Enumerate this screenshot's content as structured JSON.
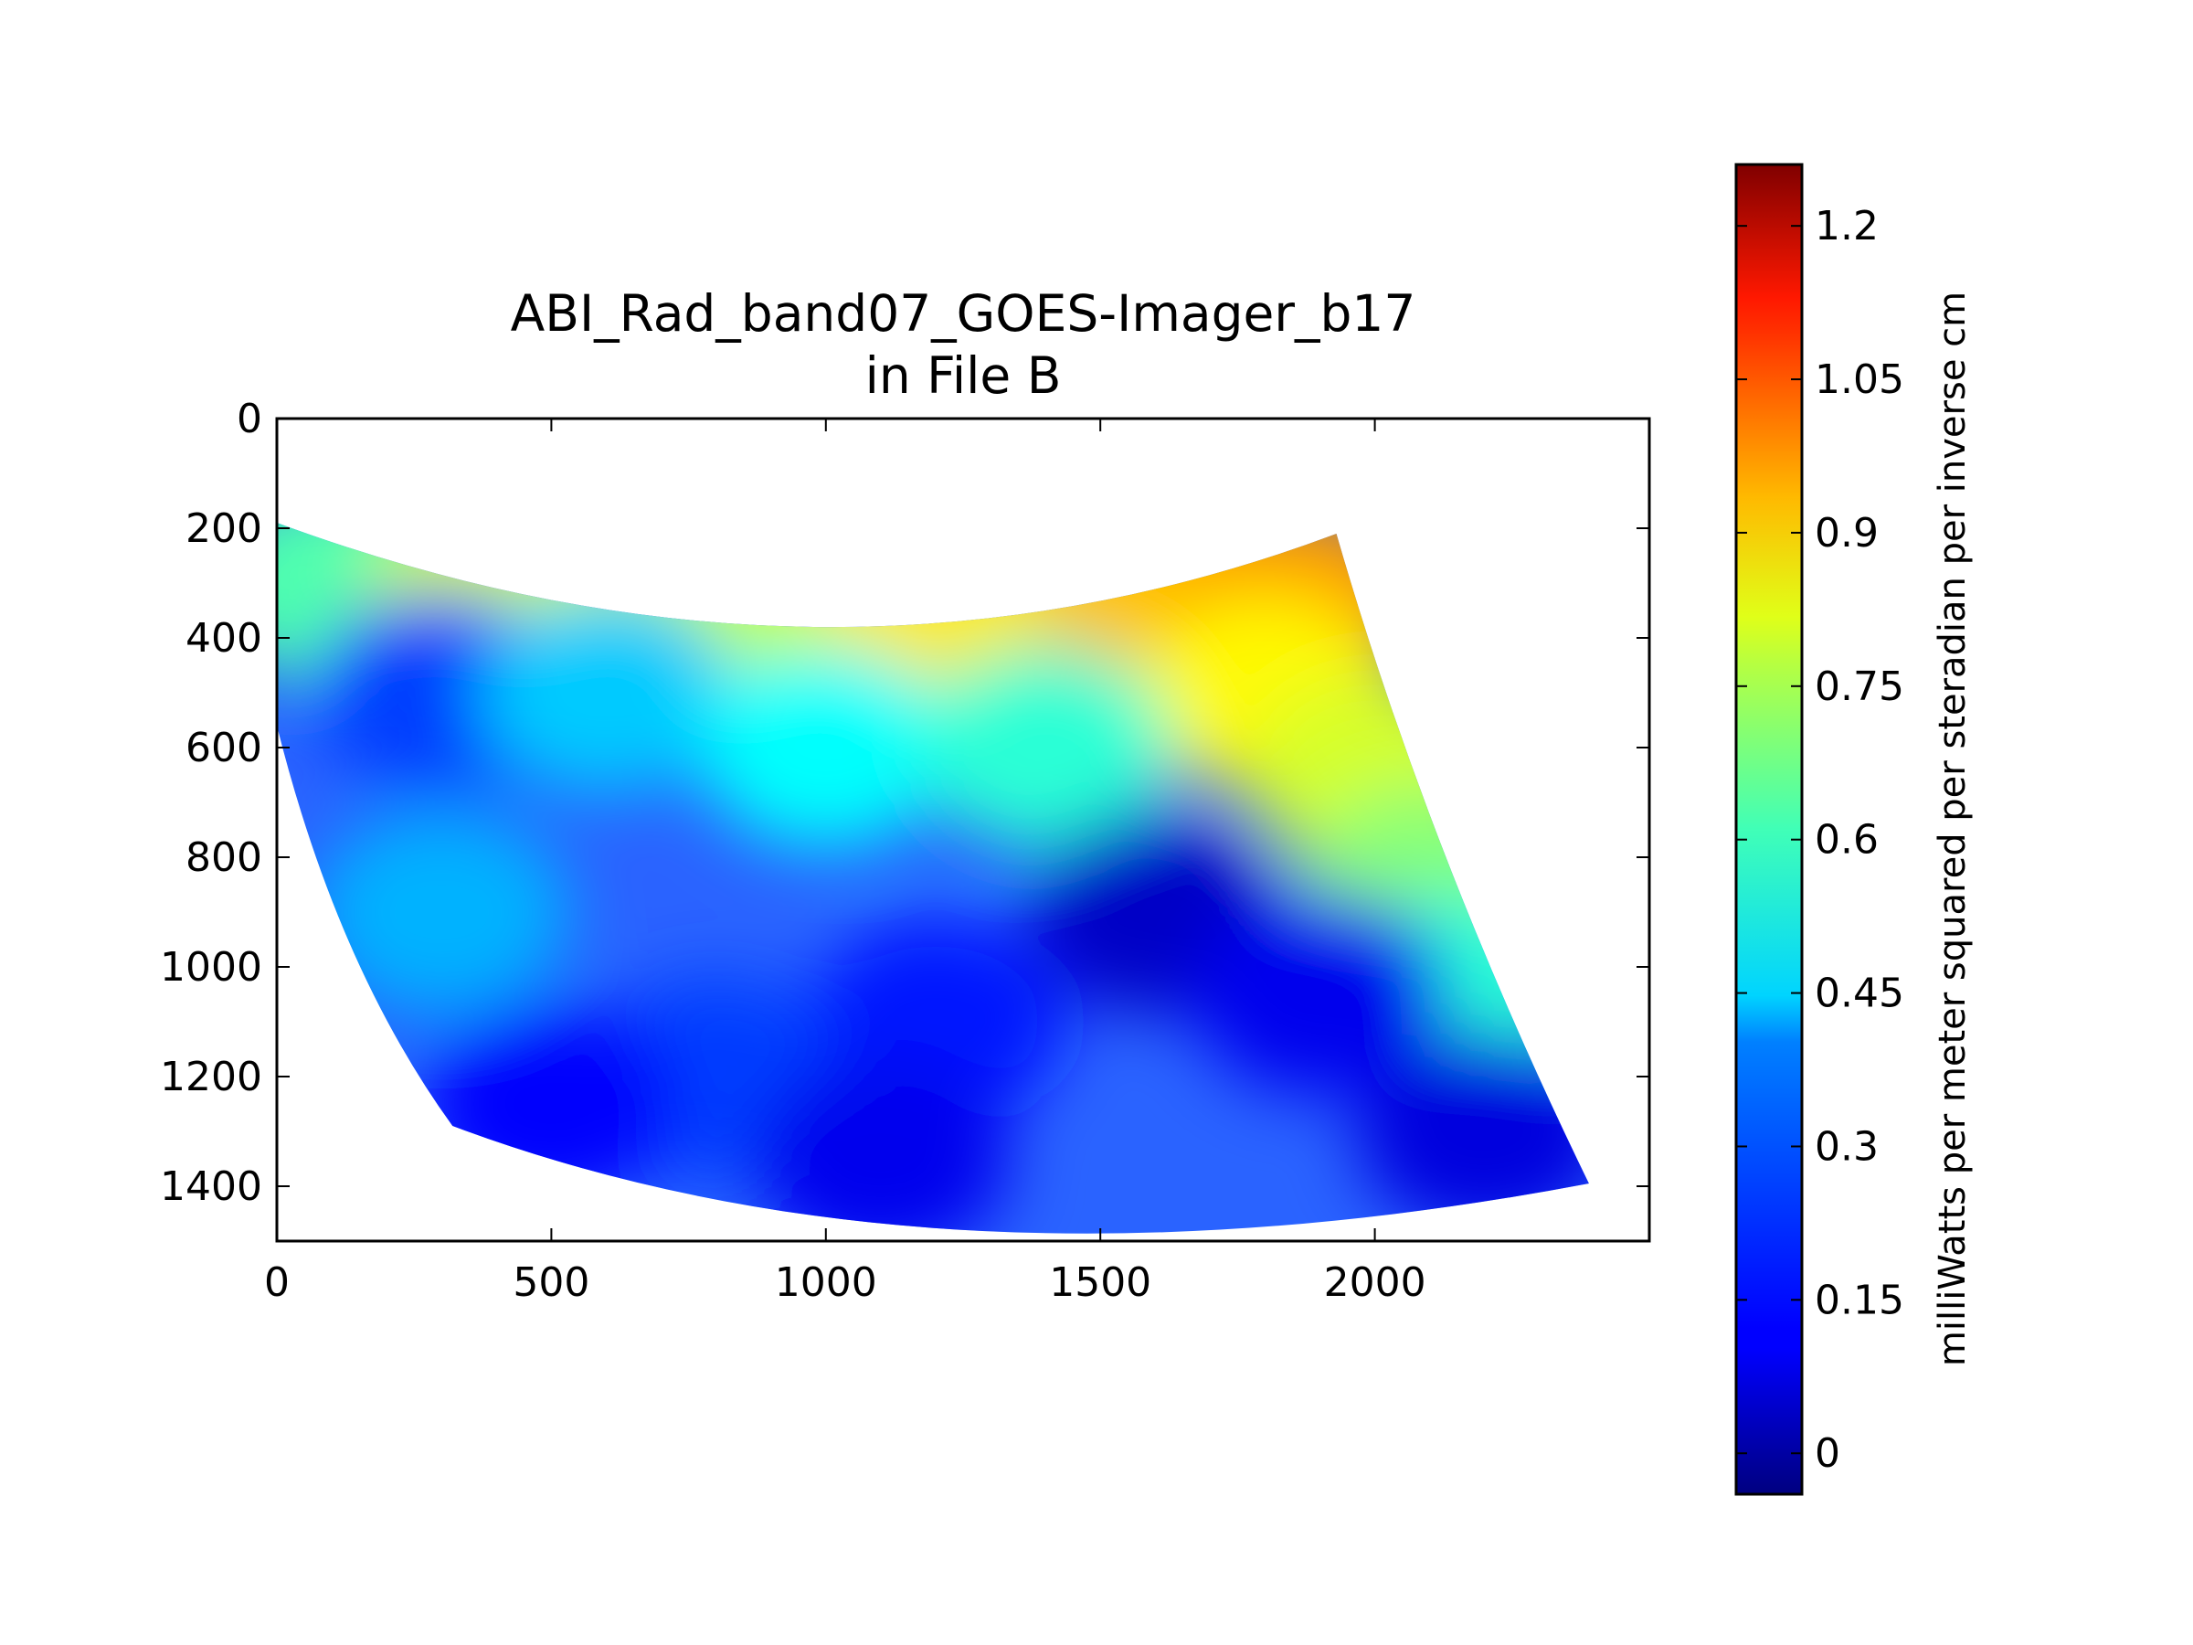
{
  "chart_data": {
    "type": "heatmap",
    "title": "ABI_Rad_band07_GOES-Imager_b17",
    "subtitle": "in File B",
    "xlabel": "",
    "ylabel": "",
    "xlim": [
      0,
      2500
    ],
    "ylim": [
      1500,
      0
    ],
    "y_inverted": true,
    "x_ticks": [
      0,
      500,
      1000,
      1500,
      2000
    ],
    "y_ticks": [
      0,
      200,
      400,
      600,
      800,
      1000,
      1200,
      1400
    ],
    "image_extent": {
      "x_left_edge": [
        0,
        190
      ],
      "x_bottom_left": [
        320,
        1290
      ],
      "x_bottom_right": [
        2390,
        1395
      ],
      "x_top_right": [
        1930,
        210
      ]
    },
    "image_blocks": [
      {
        "x": 100,
        "y": 300,
        "value": 0.55
      },
      {
        "x": 400,
        "y": 320,
        "value": 0.72
      },
      {
        "x": 800,
        "y": 380,
        "value": 0.7
      },
      {
        "x": 1200,
        "y": 330,
        "value": 0.8
      },
      {
        "x": 1600,
        "y": 280,
        "value": 0.85
      },
      {
        "x": 1850,
        "y": 330,
        "value": 0.9
      },
      {
        "x": 1800,
        "y": 500,
        "value": 0.78
      },
      {
        "x": 2000,
        "y": 650,
        "value": 0.72
      },
      {
        "x": 2100,
        "y": 850,
        "value": 0.62
      },
      {
        "x": 2150,
        "y": 1050,
        "value": 0.5
      },
      {
        "x": 300,
        "y": 500,
        "value": 0.2
      },
      {
        "x": 600,
        "y": 500,
        "value": 0.38
      },
      {
        "x": 1000,
        "y": 600,
        "value": 0.45
      },
      {
        "x": 1400,
        "y": 600,
        "value": 0.5
      },
      {
        "x": 1600,
        "y": 900,
        "value": 0.05
      },
      {
        "x": 1900,
        "y": 1050,
        "value": 0.1
      },
      {
        "x": 1200,
        "y": 1100,
        "value": 0.15
      },
      {
        "x": 800,
        "y": 1200,
        "value": 0.2
      },
      {
        "x": 500,
        "y": 1250,
        "value": 0.12
      },
      {
        "x": 300,
        "y": 900,
        "value": 0.35
      },
      {
        "x": 1100,
        "y": 1350,
        "value": 0.1
      },
      {
        "x": 2200,
        "y": 1300,
        "value": 0.08
      }
    ],
    "colorbar": {
      "label": "milliWatts per meter squared per steradian per inverse cm",
      "min": -0.04,
      "max": 1.26,
      "ticks": [
        "0",
        "0.15",
        "0.3",
        "0.45",
        "0.6",
        "0.75",
        "0.9",
        "1.05",
        "1.2"
      ],
      "colormap": "jet"
    },
    "grid": false
  }
}
